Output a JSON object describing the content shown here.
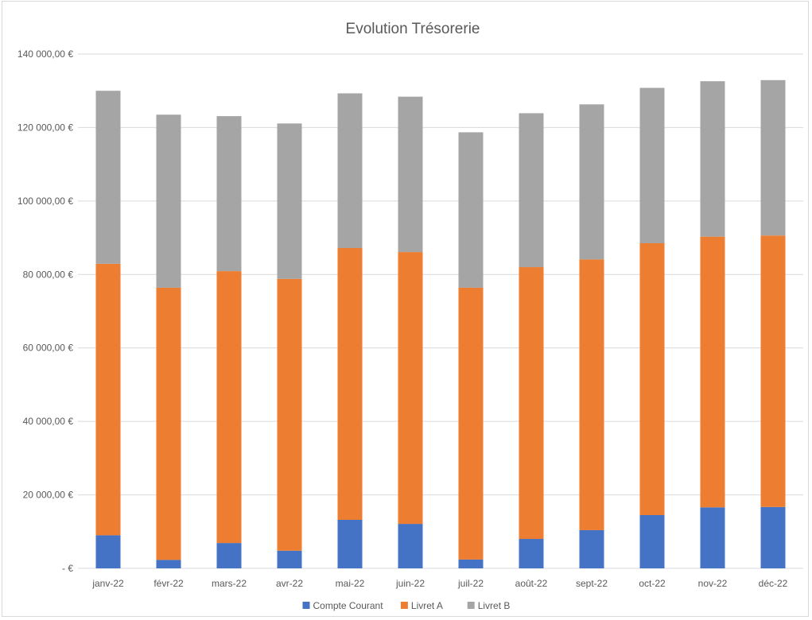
{
  "chart_data": {
    "type": "bar",
    "stacked": true,
    "title": "Evolution Trésorerie",
    "xlabel": "",
    "ylabel": "",
    "categories": [
      "janv-22",
      "févr-22",
      "mars-22",
      "avr-22",
      "mai-22",
      "juin-22",
      "juil-22",
      "août-22",
      "sept-22",
      "oct-22",
      "nov-22",
      "déc-22"
    ],
    "series": [
      {
        "name": "Compte Courant",
        "color": "#4472c4",
        "values": [
          9000,
          2300,
          6900,
          4800,
          13200,
          12100,
          2400,
          8000,
          10400,
          14500,
          16600,
          16700
        ]
      },
      {
        "name": "Livret A",
        "color": "#ed7d31",
        "values": [
          73900,
          74100,
          74000,
          74000,
          74000,
          74000,
          74000,
          74000,
          73700,
          74000,
          73700,
          73900
        ]
      },
      {
        "name": "Livret B",
        "color": "#a5a5a5",
        "values": [
          47100,
          47100,
          42200,
          42300,
          42100,
          42300,
          42300,
          41900,
          42200,
          42300,
          42300,
          42300
        ]
      }
    ],
    "ylim": [
      0,
      140000
    ],
    "yticks": [
      0,
      20000,
      40000,
      60000,
      80000,
      100000,
      120000,
      140000
    ],
    "ytick_labels": [
      " -   €",
      "20 000,00 €",
      "40 000,00 €",
      "60 000,00 €",
      "80 000,00 €",
      "100 000,00 €",
      "120 000,00 €",
      "140 000,00 €"
    ],
    "grid": true,
    "legend_position": "bottom"
  }
}
